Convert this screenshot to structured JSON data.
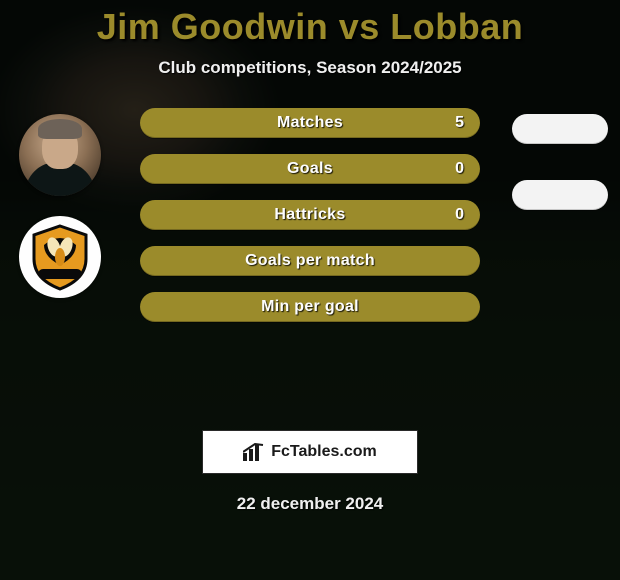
{
  "colors": {
    "olive": "#9b8b2b",
    "white_blob": "#f3f3f3",
    "title": "#9b8b2b",
    "text_light": "#f0f0f0",
    "pill_text": "#fdfdfd",
    "badge_bg": "#ffffff",
    "badge_border": "#2a2a2a",
    "badge_text": "#1a1a1a"
  },
  "typography": {
    "title_fontsize": 36,
    "subtitle_fontsize": 17,
    "pill_label_fontsize": 16,
    "date_fontsize": 17,
    "badge_fontsize": 16
  },
  "layout": {
    "pill_width": 340,
    "pill_height": 30,
    "pill_radius": 16,
    "blob_width": 96,
    "avatar_size": 82
  },
  "title": "Jim Goodwin vs Lobban",
  "subtitle": "Club competitions, Season 2024/2025",
  "rows": [
    {
      "label": "Matches",
      "value": "5",
      "has_value": true,
      "right_blob": true
    },
    {
      "label": "Goals",
      "value": "0",
      "has_value": true,
      "right_blob": true
    },
    {
      "label": "Hattricks",
      "value": "0",
      "has_value": true,
      "right_blob": false
    },
    {
      "label": "Goals per match",
      "value": "",
      "has_value": false,
      "right_blob": false
    },
    {
      "label": "Min per goal",
      "value": "",
      "has_value": false,
      "right_blob": false
    }
  ],
  "left_images": [
    {
      "type": "player_avatar",
      "alt": "Jim Goodwin headshot"
    },
    {
      "type": "club_crest",
      "alt": "Alloa Athletic FC crest",
      "bg": "#ffffff",
      "shield_fill": "#e69a1f",
      "shield_stroke": "#0a0a0a"
    }
  ],
  "badge": {
    "text": "FcTables.com",
    "icon": "bar-chart"
  },
  "date": "22 december 2024"
}
